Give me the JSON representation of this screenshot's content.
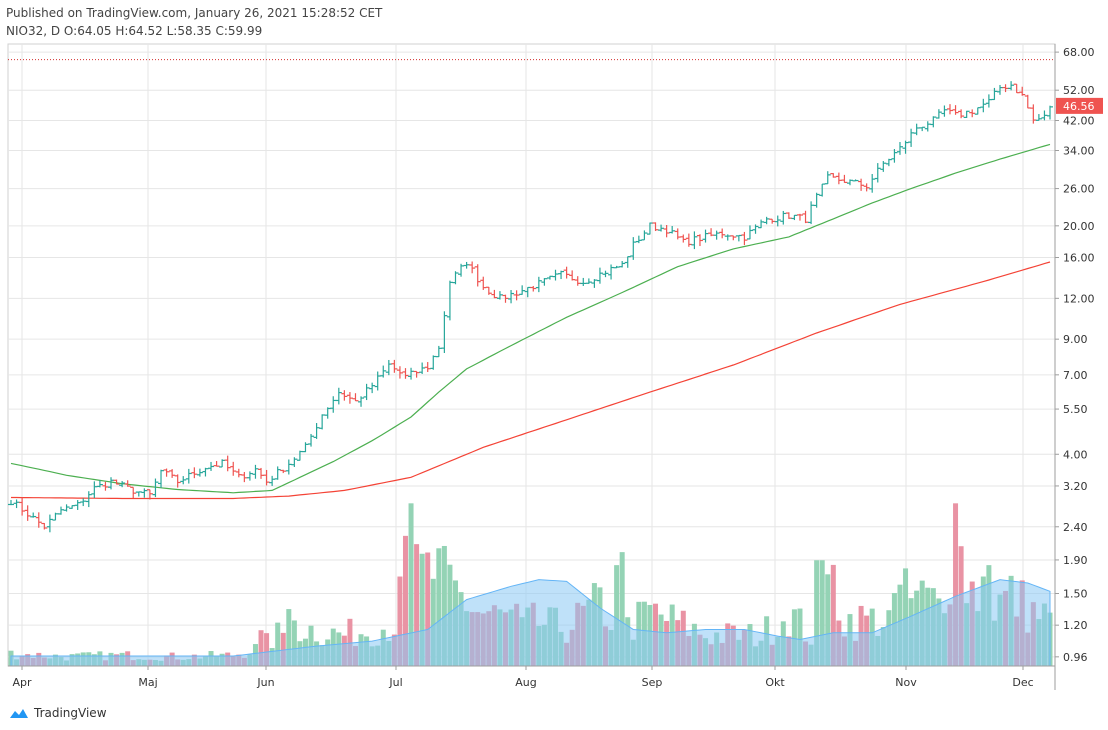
{
  "header": {
    "published": "Published on TradingView.com, January 26, 2021 15:28:52 CET",
    "ohlc": "NIO32, D O:64.05 H:64.52 L:58.35 C:59.99"
  },
  "brand": {
    "name": "TradingView"
  },
  "colors": {
    "up": "#26a69a",
    "down": "#ef5350",
    "vol_up": "#94d3b5",
    "vol_down": "#e993a4",
    "sma_fast": "#4caf50",
    "sma_slow": "#f44336",
    "vol_ma_fill": "#8ac8f4",
    "alert_line": "#d32f2f",
    "grid": "#e6e6e6"
  },
  "chart_data": {
    "type": "candlestick",
    "scale": "log",
    "ylim": [
      0.9,
      72
    ],
    "y_ticks": [
      "68.00",
      "52.00",
      "42.00",
      "34.00",
      "26.00",
      "20.00",
      "16.00",
      "12.00",
      "9.00",
      "7.00",
      "5.50",
      "4.00",
      "3.20",
      "2.40",
      "1.90",
      "1.50",
      "1.20",
      "0.96"
    ],
    "x_ticks": [
      "Apr",
      "Maj",
      "Jun",
      "Jul",
      "Aug",
      "Sep",
      "Okt",
      "Nov",
      "Dec"
    ],
    "last_price_label": "46.56",
    "last_price": 46.56,
    "alert_level": 64.5,
    "price_keypoints": [
      [
        0,
        2.88
      ],
      [
        4,
        2.55
      ],
      [
        6,
        2.4
      ],
      [
        9,
        2.7
      ],
      [
        12,
        2.8
      ],
      [
        15,
        3.15
      ],
      [
        18,
        3.3
      ],
      [
        22,
        3.1
      ],
      [
        25,
        3.0
      ],
      [
        27,
        3.55
      ],
      [
        30,
        3.3
      ],
      [
        35,
        3.65
      ],
      [
        38,
        3.75
      ],
      [
        41,
        3.4
      ],
      [
        44,
        3.6
      ],
      [
        46,
        3.3
      ],
      [
        50,
        3.75
      ],
      [
        53,
        4.2
      ],
      [
        56,
        5.3
      ],
      [
        59,
        6.2
      ],
      [
        62,
        5.8
      ],
      [
        65,
        6.5
      ],
      [
        68,
        7.5
      ],
      [
        71,
        6.9
      ],
      [
        75,
        7.4
      ],
      [
        77,
        8.5
      ],
      [
        79,
        13.5
      ],
      [
        82,
        15.5
      ],
      [
        85,
        13.0
      ],
      [
        88,
        12.0
      ],
      [
        91,
        12.5
      ],
      [
        95,
        13.3
      ],
      [
        99,
        14.2
      ],
      [
        103,
        13.5
      ],
      [
        107,
        14.5
      ],
      [
        110,
        15.2
      ],
      [
        112,
        17.5
      ],
      [
        115,
        20.0
      ],
      [
        118,
        19.5
      ],
      [
        121,
        17.8
      ],
      [
        125,
        18.5
      ],
      [
        128,
        19.0
      ],
      [
        132,
        18.5
      ],
      [
        136,
        21.0
      ],
      [
        140,
        21.5
      ],
      [
        143,
        21.0
      ],
      [
        145,
        24.5
      ],
      [
        147,
        28.0
      ],
      [
        150,
        27.5
      ],
      [
        154,
        26.5
      ],
      [
        157,
        31.0
      ],
      [
        160,
        34.5
      ],
      [
        163,
        40.0
      ],
      [
        166,
        42.0
      ],
      [
        168,
        45.0
      ],
      [
        170,
        43.5
      ],
      [
        173,
        45.0
      ],
      [
        176,
        48.0
      ],
      [
        178,
        53.0
      ],
      [
        180,
        54.0
      ],
      [
        182,
        50.0
      ],
      [
        184,
        42.0
      ],
      [
        186,
        43.0
      ],
      [
        187,
        46.56
      ]
    ],
    "sma_fast_keypoints": [
      [
        0,
        3.75
      ],
      [
        5,
        3.6
      ],
      [
        10,
        3.45
      ],
      [
        20,
        3.25
      ],
      [
        30,
        3.12
      ],
      [
        40,
        3.05
      ],
      [
        47,
        3.1
      ],
      [
        52,
        3.4
      ],
      [
        58,
        3.8
      ],
      [
        65,
        4.4
      ],
      [
        72,
        5.2
      ],
      [
        77,
        6.2
      ],
      [
        82,
        7.3
      ],
      [
        90,
        8.6
      ],
      [
        100,
        10.5
      ],
      [
        110,
        12.5
      ],
      [
        120,
        15.0
      ],
      [
        130,
        17.0
      ],
      [
        140,
        18.5
      ],
      [
        148,
        21.0
      ],
      [
        155,
        23.5
      ],
      [
        162,
        26.0
      ],
      [
        170,
        29.0
      ],
      [
        178,
        32.0
      ],
      [
        187,
        35.5
      ]
    ],
    "sma_slow_keypoints": [
      [
        0,
        2.95
      ],
      [
        20,
        2.93
      ],
      [
        40,
        2.93
      ],
      [
        50,
        2.98
      ],
      [
        60,
        3.1
      ],
      [
        72,
        3.4
      ],
      [
        85,
        4.2
      ],
      [
        100,
        5.1
      ],
      [
        115,
        6.2
      ],
      [
        130,
        7.5
      ],
      [
        145,
        9.4
      ],
      [
        160,
        11.5
      ],
      [
        175,
        13.5
      ],
      [
        187,
        15.5
      ]
    ],
    "volume_keypoints": [
      [
        0,
        0.08
      ],
      [
        10,
        0.06
      ],
      [
        20,
        0.07
      ],
      [
        30,
        0.06
      ],
      [
        40,
        0.07
      ],
      [
        45,
        0.12
      ],
      [
        48,
        0.2
      ],
      [
        52,
        0.25
      ],
      [
        60,
        0.2
      ],
      [
        70,
        0.28
      ],
      [
        72,
        0.55
      ],
      [
        76,
        0.6
      ],
      [
        80,
        0.48
      ],
      [
        84,
        0.35
      ],
      [
        90,
        0.3
      ],
      [
        100,
        0.25
      ],
      [
        106,
        0.4
      ],
      [
        110,
        0.22
      ],
      [
        115,
        0.35
      ],
      [
        120,
        0.28
      ],
      [
        125,
        0.2
      ],
      [
        135,
        0.2
      ],
      [
        140,
        0.35
      ],
      [
        145,
        0.15
      ],
      [
        148,
        0.55
      ],
      [
        150,
        0.3
      ],
      [
        158,
        0.3
      ],
      [
        163,
        0.45
      ],
      [
        167,
        0.4
      ],
      [
        170,
        0.85
      ],
      [
        172,
        0.55
      ],
      [
        176,
        0.38
      ],
      [
        180,
        0.45
      ],
      [
        184,
        0.35
      ],
      [
        187,
        0.3
      ]
    ],
    "volume_ma_keypoints": [
      [
        0,
        0.06
      ],
      [
        20,
        0.06
      ],
      [
        40,
        0.06
      ],
      [
        55,
        0.12
      ],
      [
        65,
        0.15
      ],
      [
        75,
        0.22
      ],
      [
        82,
        0.4
      ],
      [
        90,
        0.48
      ],
      [
        95,
        0.52
      ],
      [
        100,
        0.51
      ],
      [
        106,
        0.35
      ],
      [
        112,
        0.22
      ],
      [
        118,
        0.2
      ],
      [
        125,
        0.22
      ],
      [
        132,
        0.22
      ],
      [
        138,
        0.18
      ],
      [
        142,
        0.16
      ],
      [
        148,
        0.2
      ],
      [
        155,
        0.2
      ],
      [
        162,
        0.3
      ],
      [
        170,
        0.42
      ],
      [
        178,
        0.52
      ],
      [
        183,
        0.5
      ],
      [
        187,
        0.45
      ]
    ],
    "volume_spikes": [
      [
        72,
        1.0
      ],
      [
        71,
        0.8
      ],
      [
        70,
        0.55
      ],
      [
        45,
        0.22
      ],
      [
        145,
        0.65
      ],
      [
        146,
        0.65
      ],
      [
        109,
        0.62
      ],
      [
        110,
        0.7
      ],
      [
        170,
        1.0
      ],
      [
        160,
        0.5
      ],
      [
        161,
        0.6
      ],
      [
        175,
        0.55
      ],
      [
        176,
        0.62
      ],
      [
        92,
        0.3
      ],
      [
        50,
        0.35
      ],
      [
        51,
        0.28
      ]
    ]
  }
}
